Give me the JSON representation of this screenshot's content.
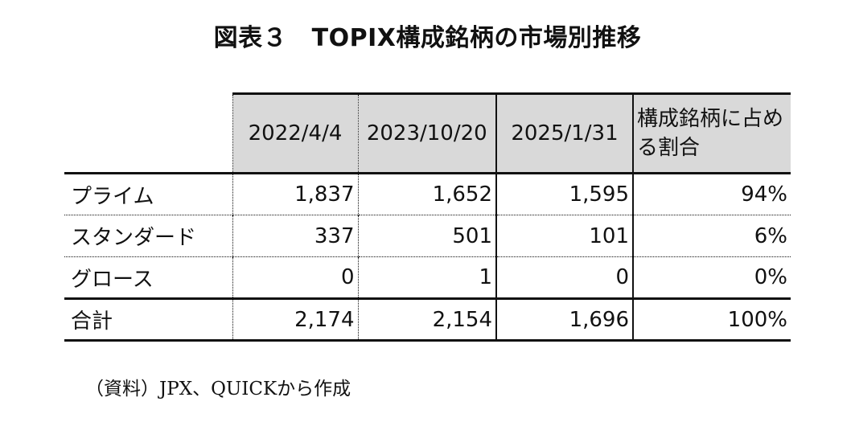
{
  "title": "図表３　TOPIX構成銘柄の市場別推移",
  "table": {
    "headers": [
      "2022/4/4",
      "2023/10/20",
      "2025/1/31",
      "構成銘柄に占める割合"
    ],
    "rows": [
      {
        "label": "プライム",
        "values": [
          "1,837",
          "1,652",
          "1,595",
          "94%"
        ]
      },
      {
        "label": "スタンダード",
        "values": [
          "337",
          "501",
          "101",
          "6%"
        ]
      },
      {
        "label": "グロース",
        "values": [
          "0",
          "1",
          "0",
          "0%"
        ]
      }
    ],
    "total": {
      "label": "合計",
      "values": [
        "2,174",
        "2,154",
        "1,696",
        "100%"
      ]
    }
  },
  "source": "（資料）JPX、QUICKから作成"
}
